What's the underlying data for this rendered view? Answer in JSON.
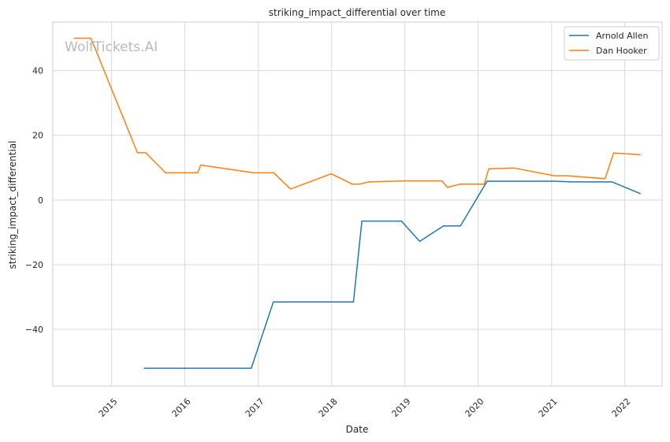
{
  "chart_data": {
    "type": "line",
    "title": "striking_impact_differential over time",
    "xlabel": "Date",
    "ylabel": "striking_impact_differential",
    "watermark": "WolfTickets.AI",
    "xlim": [
      "2014-03-14",
      "2022-07-06"
    ],
    "ylim": [
      -57.5,
      55
    ],
    "x_ticks": [
      "2015",
      "2016",
      "2017",
      "2018",
      "2019",
      "2020",
      "2021",
      "2022"
    ],
    "y_ticks": [
      -40,
      -20,
      0,
      20,
      40
    ],
    "y_tick_labels": [
      "−40",
      "−20",
      "0",
      "20",
      "40"
    ],
    "grid": true,
    "legend_position": "top-right",
    "series": [
      {
        "name": "Arnold Allen",
        "color": "#1f77b4",
        "points": [
          [
            "2015-06-13",
            -52
          ],
          [
            "2016-11-27",
            -52
          ],
          [
            "2017-03-17",
            -31.5
          ],
          [
            "2018-04-20",
            -31.5
          ],
          [
            "2018-06-01",
            -6.5
          ],
          [
            "2018-12-15",
            -6.5
          ],
          [
            "2019-03-16",
            -12.8
          ],
          [
            "2019-07-13",
            -8
          ],
          [
            "2019-10-05",
            -8
          ],
          [
            "2020-02-15",
            5.8
          ],
          [
            "2021-01-20",
            5.8
          ],
          [
            "2021-04-10",
            5.6
          ],
          [
            "2021-10-30",
            5.6
          ],
          [
            "2022-03-19",
            2
          ]
        ]
      },
      {
        "name": "Dan Hooker",
        "color": "#ff7f0e",
        "points": [
          [
            "2014-06-28",
            50
          ],
          [
            "2014-09-20",
            50
          ],
          [
            "2015-05-10",
            14.6
          ],
          [
            "2015-06-20",
            14.6
          ],
          [
            "2015-09-27",
            8.4
          ],
          [
            "2016-03-05",
            8.4
          ],
          [
            "2016-03-20",
            10.8
          ],
          [
            "2016-12-10",
            8.4
          ],
          [
            "2017-03-19",
            8.4
          ],
          [
            "2017-06-11",
            3.4
          ],
          [
            "2017-12-30",
            8.1
          ],
          [
            "2018-04-14",
            4.9
          ],
          [
            "2018-05-19",
            4.9
          ],
          [
            "2018-07-07",
            5.6
          ],
          [
            "2018-12-29",
            5.9
          ],
          [
            "2019-07-06",
            5.9
          ],
          [
            "2019-08-01",
            3.9
          ],
          [
            "2019-10-05",
            4.9
          ],
          [
            "2020-02-01",
            4.9
          ],
          [
            "2020-02-23",
            9.6
          ],
          [
            "2020-06-27",
            9.9
          ],
          [
            "2021-01-16",
            7.5
          ],
          [
            "2021-03-20",
            7.5
          ],
          [
            "2021-09-25",
            6.6
          ],
          [
            "2021-11-06",
            14.5
          ],
          [
            "2022-03-19",
            14
          ]
        ]
      }
    ]
  }
}
